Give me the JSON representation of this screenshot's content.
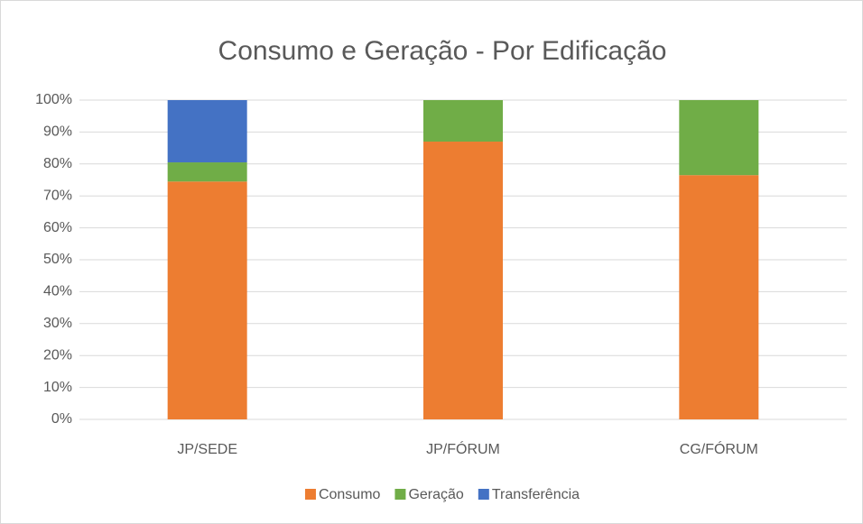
{
  "chart_data": {
    "type": "stacked_bar",
    "title": "Consumo e Geração - Por Edificação",
    "categories": [
      "JP/SEDE",
      "JP/FÓRUM",
      "CG/FÓRUM"
    ],
    "series": [
      {
        "name": "Consumo",
        "color": "#ed7d31",
        "values": [
          74.5,
          87,
          76.5
        ]
      },
      {
        "name": "Geração",
        "color": "#70ad47",
        "values": [
          6,
          13,
          23.5
        ]
      },
      {
        "name": "Transferência",
        "color": "#4472c4",
        "values": [
          19.5,
          0,
          0
        ]
      }
    ],
    "ylim": [
      0,
      100
    ],
    "yticks": [
      {
        "value": 0,
        "label": "0%"
      },
      {
        "value": 10,
        "label": "10%"
      },
      {
        "value": 20,
        "label": "20%"
      },
      {
        "value": 30,
        "label": "30%"
      },
      {
        "value": 40,
        "label": "40%"
      },
      {
        "value": 50,
        "label": "50%"
      },
      {
        "value": 60,
        "label": "60%"
      },
      {
        "value": 70,
        "label": "70%"
      },
      {
        "value": 80,
        "label": "80%"
      },
      {
        "value": 90,
        "label": "90%"
      },
      {
        "value": 100,
        "label": "100%"
      }
    ],
    "grid": true,
    "legend": "bottom"
  }
}
